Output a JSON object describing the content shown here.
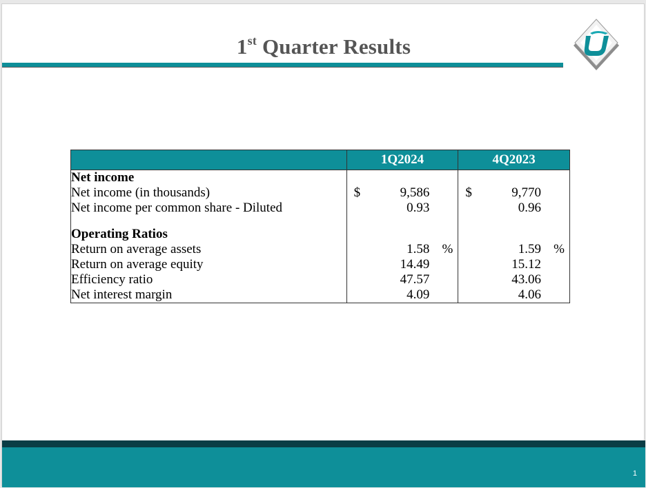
{
  "title": {
    "main": "1",
    "sup": "st",
    "rest": " Quarter Results"
  },
  "colors": {
    "accent": "#0e8f99",
    "footer_dark": "#0a3d45",
    "title_text": "#555555"
  },
  "logo": {
    "icon": "company-logo-diamond"
  },
  "table": {
    "headers": [
      "1Q2024",
      "4Q2023"
    ],
    "sections": [
      {
        "heading": "Net income",
        "rows": [
          {
            "label": "Net income (in thousands)",
            "cur": "$",
            "v1": "9,586",
            "v2": "9,770",
            "pct": ""
          },
          {
            "label": "Net income per common share - Diluted",
            "cur": "",
            "v1": "0.93",
            "v2": "0.96",
            "pct": ""
          }
        ]
      },
      {
        "heading": "Operating Ratios",
        "rows": [
          {
            "label": "Return on average assets",
            "cur": "",
            "v1": "1.58",
            "v2": "1.59",
            "pct": "%"
          },
          {
            "label": "Return on average equity",
            "cur": "",
            "v1": "14.49",
            "v2": "15.12",
            "pct": ""
          },
          {
            "label": "Efficiency ratio",
            "cur": "",
            "v1": "47.57",
            "v2": "43.06",
            "pct": ""
          },
          {
            "label": "Net interest margin",
            "cur": "",
            "v1": "4.09",
            "v2": "4.06",
            "pct": ""
          }
        ]
      }
    ]
  },
  "footer": {
    "page_number": "1"
  }
}
